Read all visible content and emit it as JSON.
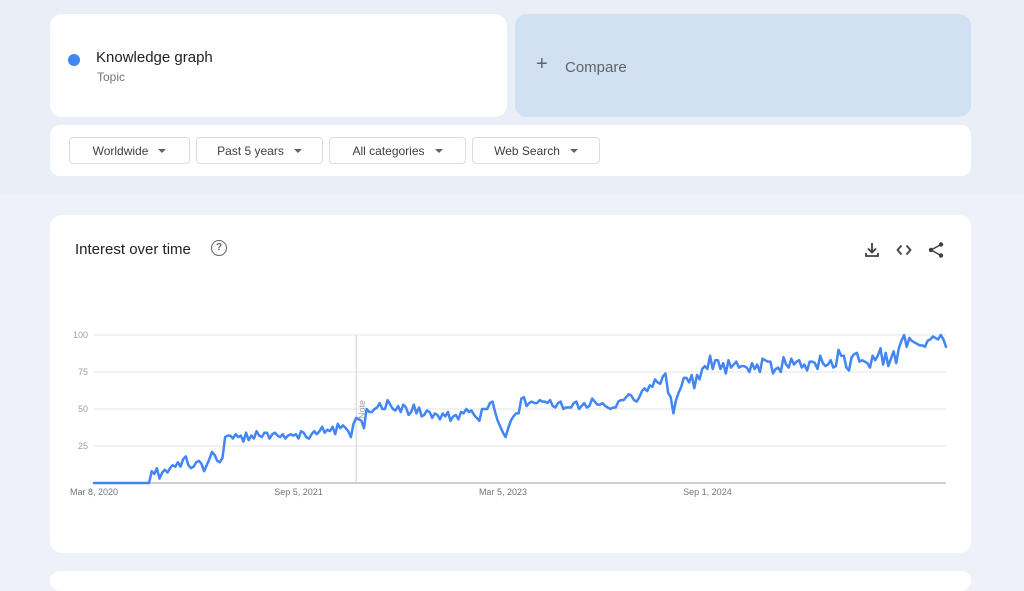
{
  "term": {
    "name": "Knowledge graph",
    "type": "Topic",
    "color": "#4285f4"
  },
  "compare": {
    "label": "Compare"
  },
  "filters": {
    "region": "Worldwide",
    "time": "Past 5 years",
    "category": "All categories",
    "search_type": "Web Search"
  },
  "chart": {
    "title": "Interest over time",
    "icons": [
      "help-icon",
      "download-icon",
      "embed-icon",
      "share-icon"
    ],
    "note_label": "Note"
  },
  "chart_data": {
    "type": "line",
    "title": "",
    "xlabel": "",
    "ylabel": "",
    "ylim": [
      0,
      100
    ],
    "yticks": [
      25,
      50,
      75,
      100
    ],
    "xtick_labels": [
      "Mar 8, 2020",
      "Sep 5, 2021",
      "Mar 5, 2023",
      "Sep 1, 2024"
    ],
    "xtick_week_index": [
      0,
      78,
      156,
      234
    ],
    "series": [
      {
        "color": "#4285f4",
        "values": [
          0,
          0,
          0,
          0,
          0,
          0,
          0,
          0,
          0,
          0,
          0,
          0,
          0,
          0,
          0,
          0,
          0,
          0,
          0,
          0,
          0,
          0,
          8,
          6,
          10,
          3,
          7,
          9,
          7,
          10,
          12,
          11,
          14,
          11,
          16,
          18,
          12,
          10,
          11,
          14,
          15,
          13,
          8,
          12,
          16,
          21,
          19,
          15,
          14,
          17,
          31,
          32,
          32,
          30,
          33,
          31,
          32,
          28,
          34,
          29,
          32,
          30,
          35,
          32,
          31,
          34,
          34,
          30,
          33,
          34,
          32,
          31,
          33,
          30,
          32,
          33,
          32,
          33,
          30,
          35,
          34,
          31,
          30,
          33,
          35,
          33,
          35,
          38,
          34,
          36,
          35,
          38,
          33,
          40,
          37,
          39,
          37,
          35,
          31,
          40,
          44,
          43,
          42,
          37,
          50,
          48,
          48,
          50,
          51,
          54,
          50,
          50,
          56,
          53,
          50,
          49,
          52,
          48,
          53,
          51,
          46,
          48,
          53,
          47,
          51,
          45,
          46,
          49,
          48,
          44,
          47,
          46,
          43,
          47,
          45,
          48,
          42,
          45,
          46,
          43,
          48,
          47,
          50,
          48,
          49,
          46,
          44,
          42,
          50,
          50,
          50,
          54,
          55,
          48,
          42,
          38,
          34,
          31,
          37,
          42,
          45,
          47,
          47,
          57,
          58,
          52,
          54,
          55,
          54,
          54,
          56,
          55,
          55,
          54,
          56,
          52,
          51,
          54,
          55,
          50,
          51,
          51,
          51,
          54,
          55,
          50,
          52,
          54,
          51,
          52,
          57,
          55,
          53,
          53,
          54,
          52,
          51,
          50,
          51,
          51,
          55,
          56,
          56,
          58,
          60,
          59,
          56,
          55,
          58,
          62,
          64,
          62,
          66,
          65,
          70,
          68,
          67,
          72,
          74,
          61,
          58,
          47,
          56,
          61,
          65,
          71,
          71,
          68,
          73,
          64,
          73,
          70,
          77,
          79,
          77,
          86,
          77,
          83,
          83,
          77,
          81,
          74,
          83,
          78,
          80,
          82,
          78,
          79,
          79,
          78,
          75,
          81,
          77,
          80,
          75,
          84,
          83,
          82,
          82,
          74,
          77,
          78,
          75,
          85,
          80,
          78,
          84,
          80,
          82,
          83,
          78,
          80,
          76,
          82,
          82,
          81,
          77,
          86,
          81,
          79,
          80,
          83,
          78,
          79,
          90,
          86,
          86,
          78,
          76,
          85,
          87,
          88,
          82,
          83,
          82,
          81,
          78,
          86,
          83,
          86,
          91,
          80,
          88,
          79,
          84,
          89,
          81,
          91,
          96,
          100,
          92,
          98,
          96,
          95,
          94,
          93,
          93,
          92,
          96,
          97,
          99,
          98,
          97,
          100,
          97,
          92
        ]
      }
    ]
  }
}
